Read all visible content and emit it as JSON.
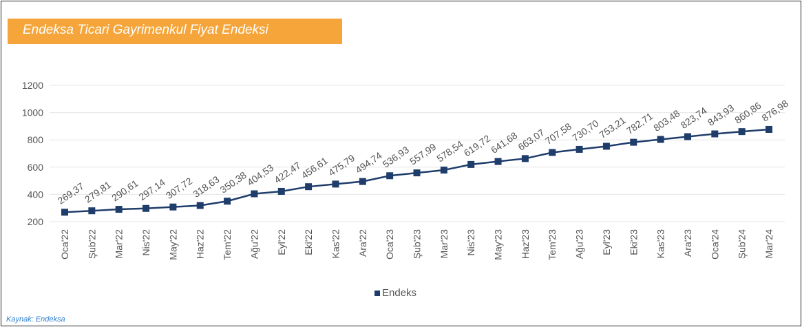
{
  "title": "Endeksa Ticari Gayrimenkul Fiyat Endeksi",
  "source": "Kaynak: Endeksa",
  "colors": {
    "accent": "#f5a53a",
    "series": "#1f3d6b",
    "source": "#2e7fd0"
  },
  "chart_data": {
    "type": "line",
    "categories": [
      "Oca'22",
      "Şub'22",
      "Mar'22",
      "Nis'22",
      "May'22",
      "Haz'22",
      "Tem'22",
      "Ağu'22",
      "Eyl'22",
      "Eki'22",
      "Kas'22",
      "Ara'22",
      "Oca'23",
      "Şub'23",
      "Mar'23",
      "Nis'23",
      "May'23",
      "Haz'23",
      "Tem'23",
      "Ağu'23",
      "Eyl'23",
      "Eki'23",
      "Kas'23",
      "Ara'23",
      "Oca'24",
      "Şub'24",
      "Mar'24"
    ],
    "series": [
      {
        "name": "Endeks",
        "values": [
          269.37,
          279.81,
          290.61,
          297.14,
          307.72,
          318.63,
          350.38,
          404.53,
          422.47,
          456.61,
          475.79,
          494.74,
          536.93,
          557.99,
          578.54,
          619.72,
          641.68,
          663.07,
          707.58,
          730.7,
          753.21,
          782.71,
          803.48,
          823.74,
          843.93,
          860.86,
          876.98
        ],
        "labels": [
          "269,37",
          "279,81",
          "290,61",
          "297,14",
          "307,72",
          "318,63",
          "350,38",
          "404,53",
          "422,47",
          "456,61",
          "475,79",
          "494,74",
          "536,93",
          "557,99",
          "578,54",
          "619,72",
          "641,68",
          "663,07",
          "707,58",
          "730,70",
          "753,21",
          "782,71",
          "803,48",
          "823,74",
          "843,93",
          "860,86",
          "876,98"
        ]
      }
    ],
    "yticks": [
      "200",
      "400",
      "600",
      "800",
      "1000",
      "1200"
    ],
    "ylim": [
      200,
      1200
    ],
    "grid": true,
    "legend": "bottom-center"
  }
}
